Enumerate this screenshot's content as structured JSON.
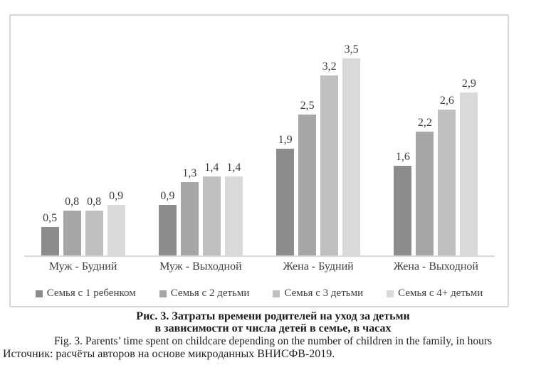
{
  "chart_data": {
    "type": "bar",
    "categories": [
      "Муж - Будний",
      "Муж - Выходной",
      "Жена - Будний",
      "Жена - Выходной"
    ],
    "series": [
      {
        "name": "Семья с 1 ребенком",
        "color": "#8c8c8c",
        "values": [
          0.5,
          0.9,
          1.9,
          1.6
        ]
      },
      {
        "name": "Семья с 2 детьми",
        "color": "#a6a6a6",
        "values": [
          0.8,
          1.3,
          2.5,
          2.2
        ]
      },
      {
        "name": "Семья с 3 детьми",
        "color": "#bfbfbf",
        "values": [
          0.8,
          1.4,
          3.2,
          2.6
        ]
      },
      {
        "name": "Семья с 4+ детьми",
        "color": "#d9d9d9",
        "values": [
          0.9,
          1.4,
          3.5,
          2.9
        ]
      }
    ],
    "title": "",
    "xlabel": "",
    "ylabel": "",
    "ylim": [
      0,
      3.8
    ],
    "grid": false,
    "legend_position": "bottom",
    "value_label_format": "decimal-comma",
    "axis_color": "#d9d9d9"
  },
  "caption": {
    "title_ru_line1": "Рис. 3. Затраты времени родителей на уход за детьми",
    "title_ru_line2": "в зависимости от числа детей в семье, в часах",
    "title_en": "Fig. 3. Parents’ time spent on childcare depending on the number of children in the family, in hours",
    "source": "Источник: расчёты авторов на основе микроданных ВНИСФВ-2019."
  }
}
